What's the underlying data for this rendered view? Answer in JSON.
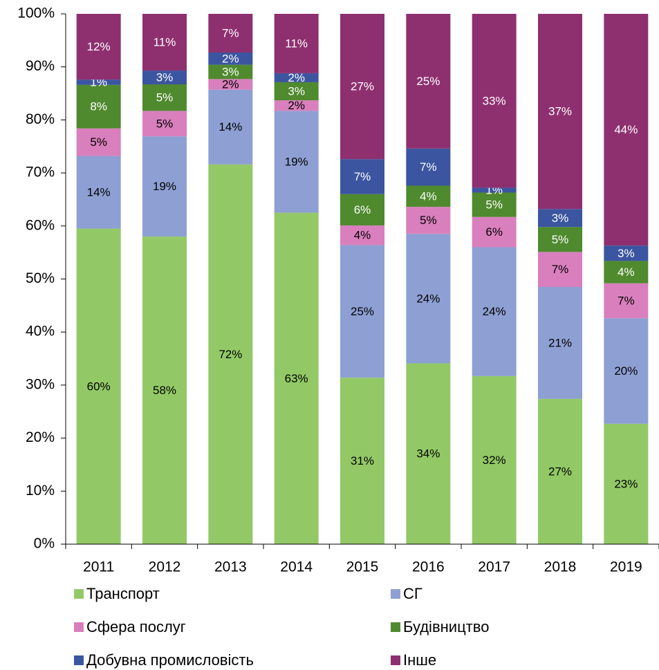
{
  "chart_data": {
    "type": "stacked_bar",
    "categories": [
      "2011",
      "2012",
      "2013",
      "2014",
      "2015",
      "2016",
      "2017",
      "2018",
      "2019"
    ],
    "series": [
      {
        "name": "Транспорт",
        "color": "#92c966",
        "values": [
          59.5,
          58.0,
          71.6,
          62.5,
          31.4,
          34.1,
          31.7,
          27.4,
          22.7
        ],
        "value_labels": [
          "60%",
          "58%",
          "72%",
          "63%",
          "31%",
          "34%",
          "32%",
          "27%",
          "23%"
        ]
      },
      {
        "name": "СГ",
        "color": "#8e9fd3",
        "values": [
          13.7,
          18.9,
          14.1,
          19.2,
          25.0,
          24.4,
          24.3,
          21.1,
          19.9
        ],
        "value_labels": [
          "14%",
          "19%",
          "14%",
          "19%",
          "25%",
          "24%",
          "24%",
          "21%",
          "20%"
        ]
      },
      {
        "name": "Сфера послуг",
        "color": "#d97fbd",
        "values": [
          5.2,
          4.8,
          2.0,
          2.0,
          3.7,
          5.1,
          5.7,
          6.6,
          6.6
        ],
        "value_labels": [
          "5%",
          "5%",
          "2%",
          "2%",
          "4%",
          "5%",
          "6%",
          "7%",
          "7%"
        ]
      },
      {
        "name": "Будівництво",
        "color": "#4f8a2e",
        "values": [
          8.2,
          5.0,
          2.7,
          3.4,
          5.9,
          4.0,
          4.6,
          4.7,
          4.2
        ],
        "value_labels": [
          "8%",
          "5%",
          "3%",
          "3%",
          "6%",
          "4%",
          "5%",
          "5%",
          "4%"
        ]
      },
      {
        "name": "Добувна промисловість",
        "color": "#3b55a0",
        "values": [
          1.0,
          2.6,
          2.3,
          1.7,
          6.6,
          7.0,
          0.9,
          3.4,
          2.9
        ],
        "value_labels": [
          "1%",
          "3%",
          "2%",
          "2%",
          "7%",
          "7%",
          "1%",
          "3%",
          "3%"
        ]
      },
      {
        "name": "Інше",
        "color": "#8e3070",
        "values": [
          12.4,
          10.7,
          7.3,
          11.2,
          27.4,
          25.4,
          32.8,
          36.8,
          43.7
        ],
        "value_labels": [
          "12%",
          "11%",
          "7%",
          "11%",
          "27%",
          "25%",
          "33%",
          "37%",
          "44%"
        ]
      }
    ],
    "ylim": [
      0,
      100
    ],
    "yticks": [
      {
        "value": 0,
        "label": "0%"
      },
      {
        "value": 10,
        "label": "10%"
      },
      {
        "value": 20,
        "label": "20%"
      },
      {
        "value": 30,
        "label": "30%"
      },
      {
        "value": 40,
        "label": "40%"
      },
      {
        "value": 50,
        "label": "50%"
      },
      {
        "value": 60,
        "label": "60%"
      },
      {
        "value": 70,
        "label": "70%"
      },
      {
        "value": 80,
        "label": "80%"
      },
      {
        "value": 90,
        "label": "90%"
      },
      {
        "value": 100,
        "label": "100%"
      }
    ],
    "legend": "bottom"
  }
}
